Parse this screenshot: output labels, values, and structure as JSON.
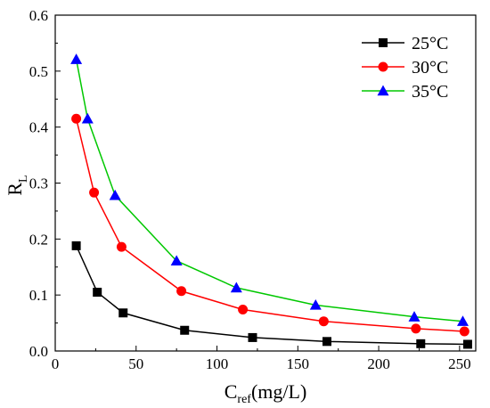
{
  "chart_data": {
    "type": "line",
    "xlabel": {
      "main": "C",
      "sub": "ref",
      "rest": "(mg/L)"
    },
    "ylabel": {
      "main": "R",
      "sub": "L"
    },
    "xlim": [
      0,
      260
    ],
    "ylim": [
      0,
      0.6
    ],
    "xticks": [
      0,
      50,
      100,
      150,
      200,
      250
    ],
    "yticks": [
      0.0,
      0.1,
      0.2,
      0.3,
      0.4,
      0.5,
      0.6
    ],
    "ytick_labels": [
      "0.0",
      "0.1",
      "0.2",
      "0.3",
      "0.4",
      "0.5",
      "0.6"
    ],
    "grid": false,
    "legend_position": "top-right",
    "series": [
      {
        "name": "25°C",
        "color": "#000000",
        "marker": "square",
        "x": [
          13,
          26,
          42,
          80,
          122,
          168,
          226,
          255
        ],
        "y": [
          0.188,
          0.105,
          0.068,
          0.037,
          0.024,
          0.017,
          0.013,
          0.012
        ]
      },
      {
        "name": "30°C",
        "color": "#ff0000",
        "marker": "circle",
        "x": [
          13,
          24,
          41,
          78,
          116,
          166,
          223,
          253
        ],
        "y": [
          0.415,
          0.283,
          0.186,
          0.107,
          0.074,
          0.053,
          0.04,
          0.035
        ]
      },
      {
        "name": "35°C",
        "color": "#00c800",
        "marker": "triangle",
        "marker_color": "#0000ff",
        "x": [
          13,
          20,
          37,
          75,
          112,
          161,
          222,
          252
        ],
        "y": [
          0.521,
          0.415,
          0.278,
          0.161,
          0.113,
          0.082,
          0.061,
          0.053
        ]
      }
    ]
  }
}
